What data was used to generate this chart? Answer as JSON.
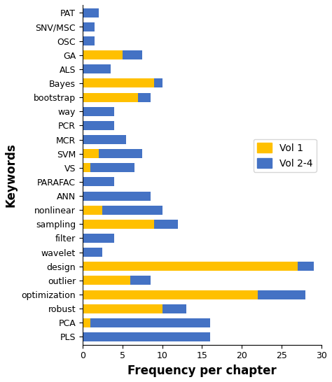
{
  "categories": [
    "PAT",
    "SNV/MSC",
    "OSC",
    "GA",
    "ALS",
    "Bayes",
    "bootstrap",
    "way",
    "PCR",
    "MCR",
    "SVM",
    "VS",
    "PARAFAC",
    "ANN",
    "nonlinear",
    "sampling",
    "filter",
    "wavelet",
    "design",
    "outlier",
    "optimization",
    "robust",
    "PCA",
    "PLS"
  ],
  "vol1": [
    0,
    0,
    0,
    5,
    0,
    9,
    7,
    0,
    0,
    0,
    2,
    1,
    0,
    0,
    2.5,
    9,
    0,
    0,
    27,
    6,
    22,
    10,
    1,
    0
  ],
  "vol24": [
    2,
    1.5,
    1.5,
    2.5,
    3.5,
    1,
    1.5,
    4,
    4,
    5.5,
    5.5,
    5.5,
    4,
    8.5,
    7.5,
    3,
    4,
    2.5,
    2,
    2.5,
    6,
    3,
    15,
    16
  ],
  "vol1_color": "#FFC000",
  "vol24_color": "#4472C4",
  "xlabel": "Frequency per chapter",
  "ylabel": "Keywords",
  "xlim": [
    0,
    30
  ],
  "xticks": [
    0,
    5,
    10,
    15,
    20,
    25,
    30
  ],
  "legend_labels": [
    "Vol 1",
    "Vol 2-4"
  ],
  "xlabel_fontsize": 12,
  "ylabel_fontsize": 12,
  "tick_fontsize": 9,
  "legend_fontsize": 10,
  "bar_height": 0.65
}
